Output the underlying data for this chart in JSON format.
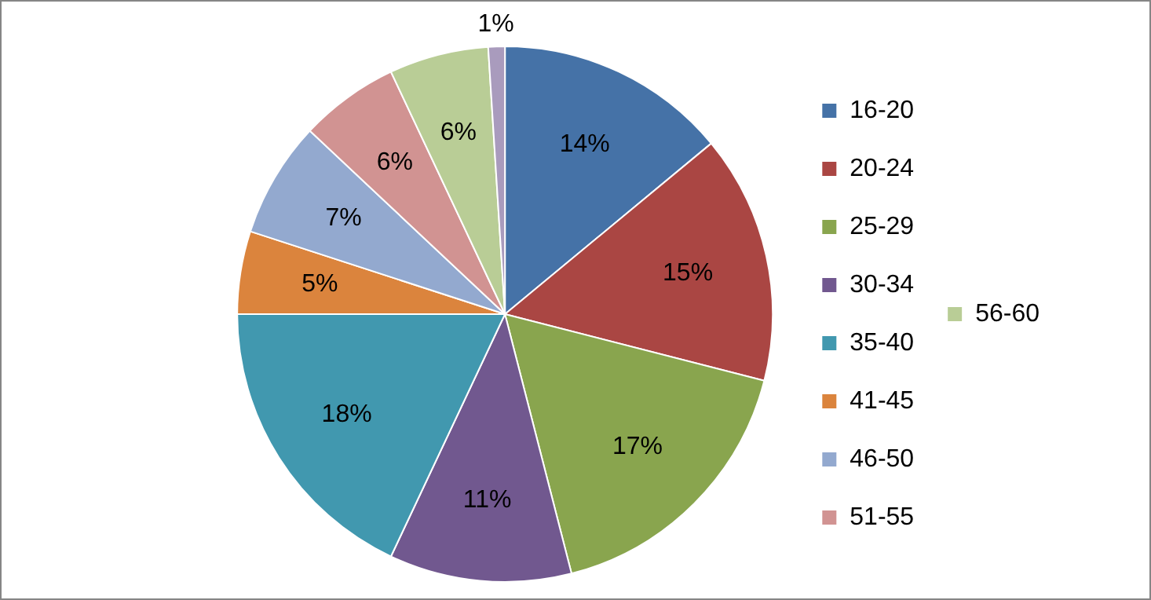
{
  "chart_data": {
    "type": "pie",
    "categories": [
      "16-20",
      "20-24",
      "25-29",
      "30-34",
      "35-40",
      "41-45",
      "46-50",
      "51-55",
      "56-60",
      null
    ],
    "values": [
      14,
      15,
      17,
      11,
      18,
      5,
      7,
      6,
      6,
      1
    ],
    "value_labels": [
      "14%",
      "15%",
      "17%",
      "11%",
      "18%",
      "5%",
      "7%",
      "6%",
      "6%",
      "1%"
    ],
    "colors": [
      "#4572a7",
      "#aa4643",
      "#89a54e",
      "#71588f",
      "#4198af",
      "#db843d",
      "#93a9cf",
      "#d19392",
      "#b9cd96",
      "#a99bbd"
    ],
    "legend": "right"
  }
}
